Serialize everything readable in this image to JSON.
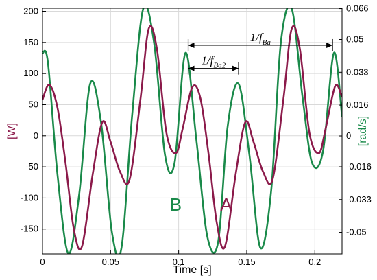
{
  "chart_data": {
    "type": "line",
    "xlabel": "Time [s]",
    "ylabel_left": "[W]",
    "ylabel_right": "[rad/s]",
    "xlim": [
      0,
      0.22
    ],
    "ylim_left": [
      -190,
      205
    ],
    "ylim_right": [
      -0.0612,
      0.0662
    ],
    "x_ticks": [
      0,
      0.05,
      0.1,
      0.15,
      0.2
    ],
    "x_tick_labels": [
      "0",
      "0.05",
      "0.1",
      "0.15",
      "0.2"
    ],
    "y_left_ticks": [
      200,
      150,
      100,
      50,
      0,
      -50,
      -100,
      -150
    ],
    "y_left_tick_labels": [
      "200",
      "150",
      "100",
      "50",
      "0",
      "-50",
      "-100",
      "-150"
    ],
    "y_right_ticks": [
      0.066,
      0.05,
      0.033,
      0.016,
      0,
      -0.016,
      -0.033,
      -0.05
    ],
    "y_right_tick_labels": [
      "0.066",
      "0.05",
      "0.033",
      "0.016",
      "0",
      "-0.016",
      "-0.033",
      "-0.05"
    ],
    "grid": true,
    "colors": {
      "A": "#8b1a4a",
      "B": "#1a8a4a",
      "axes": "#000000",
      "grid": "#d9d9d9"
    },
    "series": [
      {
        "name": "A",
        "axis": "left",
        "color": "#8b1a4a",
        "x": [
          0,
          0.005,
          0.011,
          0.017,
          0.023,
          0.029,
          0.037,
          0.044,
          0.05,
          0.057,
          0.064,
          0.072,
          0.078,
          0.084,
          0.091,
          0.098,
          0.103,
          0.11,
          0.116,
          0.122,
          0.128,
          0.134,
          0.142,
          0.149,
          0.155,
          0.162,
          0.169,
          0.177,
          0.183,
          0.189,
          0.196,
          0.203,
          0.208,
          0.215,
          0.22
        ],
        "y": [
          58,
          82,
          45,
          -45,
          -150,
          -178,
          -60,
          22,
          -10,
          -58,
          -70,
          60,
          172,
          140,
          5,
          -28,
          12,
          78,
          60,
          -30,
          -140,
          -178,
          -60,
          22,
          -10,
          -58,
          -70,
          60,
          172,
          140,
          5,
          -28,
          12,
          80,
          62
        ]
      },
      {
        "name": "B",
        "axis": "right",
        "color": "#1a8a4a",
        "x": [
          0,
          0.004,
          0.011,
          0.019,
          0.027,
          0.035,
          0.043,
          0.051,
          0.058,
          0.066,
          0.074,
          0.082,
          0.09,
          0.097,
          0.105,
          0.113,
          0.121,
          0.129,
          0.136,
          0.144,
          0.152,
          0.16,
          0.168,
          0.175,
          0.183,
          0.191,
          0.198,
          0.206,
          0.214,
          0.22
        ],
        "y": [
          0.043,
          0.038,
          -0.02,
          -0.061,
          -0.03,
          0.027,
          0.007,
          -0.05,
          -0.058,
          0.012,
          0.066,
          0.048,
          -0.01,
          -0.014,
          0.043,
          -0.002,
          -0.052,
          -0.055,
          0.005,
          0.027,
          -0.01,
          -0.058,
          -0.028,
          0.048,
          0.066,
          0.02,
          -0.014,
          -0.008,
          0.043,
          0.01
        ]
      }
    ],
    "series_tags": {
      "A": "A",
      "B": "B"
    },
    "annotations": {
      "period_a": {
        "text": "1/f",
        "sub": "Ba",
        "from_x": 0.107,
        "to_x": 0.213,
        "y": 0.047
      },
      "period_a2": {
        "text": "1/f",
        "sub": "Ba2",
        "from_x": 0.107,
        "to_x": 0.144,
        "y": 0.035
      }
    }
  }
}
